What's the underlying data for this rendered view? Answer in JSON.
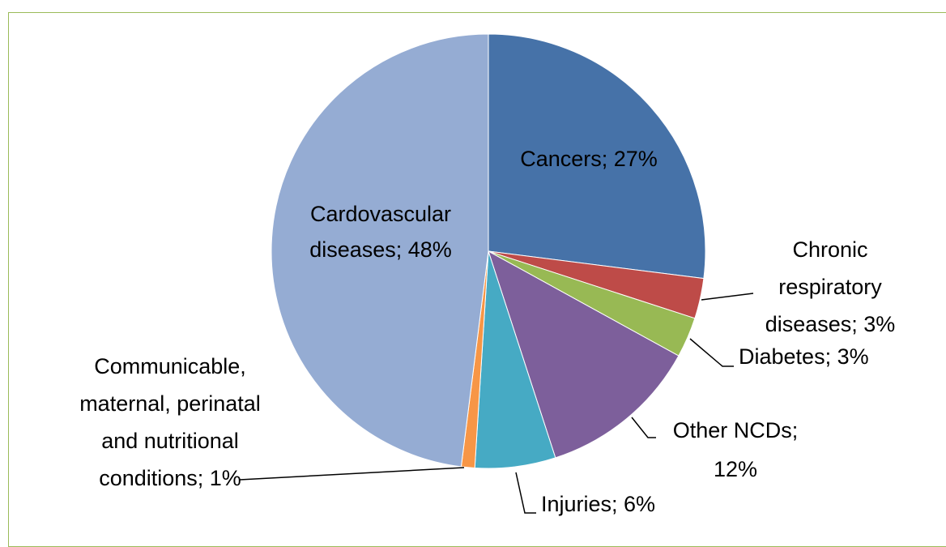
{
  "chart_data": {
    "type": "pie",
    "labels": [
      "Cancers; 27%",
      "Chronic respiratory diseases; 3%",
      "Diabetes; 3%",
      "Other NCDs; 12%",
      "Injuries; 6%",
      "Communicable, maternal, perinatal and nutritional conditions; 1%",
      "Cardovascular diseases; 48%"
    ],
    "values": [
      27,
      3,
      3,
      12,
      6,
      1,
      48
    ],
    "colors": [
      "#4672a8",
      "#be4b48",
      "#98b954",
      "#7d5f9b",
      "#46aac4",
      "#f79646",
      "#95acd3"
    ]
  }
}
